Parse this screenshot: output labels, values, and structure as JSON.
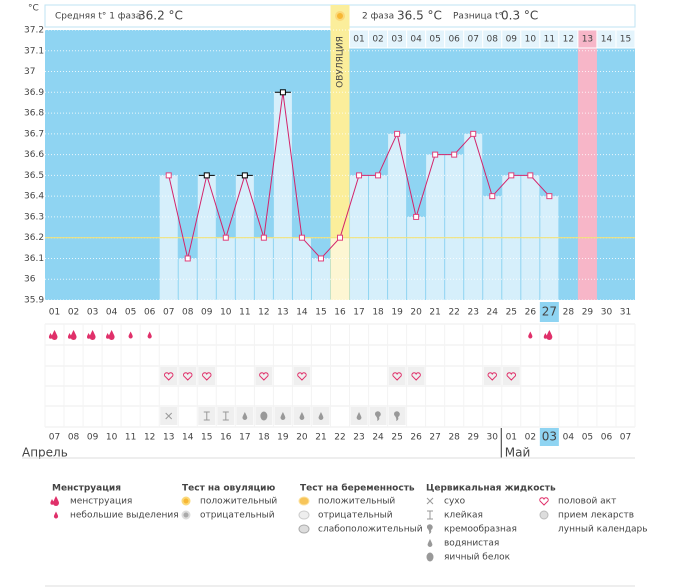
{
  "header": {
    "unit": "°C",
    "phase1_label": "Средняя t° 1 фаза",
    "phase1_value": "36.2 °C",
    "phase2_label": "2 фаза",
    "phase2_value": "36.5 °C",
    "diff_label": "Разница t°",
    "diff_value": "0.3 °C"
  },
  "chart_data": {
    "type": "line",
    "x": [
      "01",
      "02",
      "03",
      "04",
      "05",
      "06",
      "07",
      "08",
      "09",
      "10",
      "11",
      "12",
      "13",
      "14",
      "15",
      "16",
      "17",
      "18",
      "19",
      "20",
      "21",
      "22",
      "23",
      "24",
      "25",
      "26",
      "27",
      "28",
      "29",
      "30",
      "31"
    ],
    "series": [
      {
        "color": "#d3246b",
        "values": [
          null,
          null,
          null,
          null,
          null,
          null,
          36.5,
          36.1,
          36.5,
          36.2,
          36.5,
          36.2,
          36.9,
          36.2,
          36.1,
          36.2,
          36.5,
          36.5,
          36.7,
          36.3,
          36.6,
          36.6,
          36.7,
          36.4,
          36.5,
          36.5,
          36.4,
          null,
          null,
          null,
          null
        ],
        "marker_colors": [
          null,
          null,
          null,
          null,
          null,
          null,
          "#e0407a",
          "#e0407a",
          "#000000",
          "#e0407a",
          "#000000",
          "#e0407a",
          "#000000",
          "#e0407a",
          "#e0407a",
          "#e0407a",
          "#e0407a",
          "#e0407a",
          "#e0407a",
          "#e0407a",
          "#e0407a",
          "#e0407a",
          "#e0407a",
          "#e0407a",
          "#e0407a",
          "#e0407a",
          "#e0407a",
          null,
          null,
          null,
          null
        ]
      }
    ],
    "ylim": [
      35.9,
      37.2
    ],
    "yticks": [
      35.9,
      36,
      36.1,
      36.2,
      36.3,
      36.4,
      36.5,
      36.6,
      36.7,
      36.8,
      36.9,
      37,
      37.1,
      37.2
    ],
    "coverline": 36.2,
    "ovulation": {
      "label": "ОВУЛЯЦИЯ",
      "day": "16"
    },
    "luteal_days": [
      null,
      null,
      null,
      null,
      null,
      null,
      null,
      null,
      null,
      null,
      null,
      null,
      null,
      null,
      null,
      null,
      "01",
      "02",
      "03",
      "04",
      "05",
      "06",
      "07",
      "08",
      "09",
      "10",
      "11",
      "12",
      "13",
      "14",
      "15"
    ],
    "marked_luteal_day": "13",
    "today": "27",
    "menstruation": [
      "heavy",
      "heavy",
      "heavy",
      "heavy",
      "light",
      "light",
      null,
      null,
      null,
      null,
      null,
      null,
      null,
      null,
      null,
      null,
      null,
      null,
      null,
      null,
      null,
      null,
      null,
      null,
      null,
      "light",
      "heavy",
      null,
      null,
      null,
      null
    ],
    "intercourse": [
      "07",
      "08",
      "09",
      "12",
      "14",
      "19",
      "20",
      "24",
      "25"
    ],
    "cervical": [
      null,
      null,
      null,
      null,
      null,
      null,
      "dry",
      null,
      "sticky",
      "sticky",
      "watery",
      "eggwhite",
      "watery",
      "watery",
      "watery",
      null,
      "watery",
      "creamy",
      "creamy",
      null,
      null,
      null,
      null,
      null,
      null,
      null,
      null,
      null,
      null,
      null,
      null
    ],
    "dates": [
      "07",
      "08",
      "09",
      "10",
      "11",
      "12",
      "13",
      "14",
      "15",
      "16",
      "17",
      "18",
      "19",
      "20",
      "21",
      "22",
      "23",
      "24",
      "25",
      "26",
      "27",
      "28",
      "29",
      "30",
      "01",
      "02",
      "03",
      "04",
      "05",
      "06",
      "07"
    ],
    "date_colors": [
      "#e0306a",
      "#444",
      "#444",
      "#444",
      "#444",
      "#444",
      "#e0306a",
      "#e0306a",
      "#444",
      "#444",
      "#444",
      "#444",
      "#444",
      "#e0306a",
      "#e0306a",
      "#444",
      "#444",
      "#444",
      "#444",
      "#444",
      "#e0306a",
      "#e0306a",
      "#444",
      "#444",
      "#444",
      "#444",
      "#444",
      "#e0306a",
      "#e0306a",
      "#444",
      "#444"
    ],
    "months": [
      "Апрель",
      "Май"
    ]
  },
  "legend": [
    {
      "title": "Менструация",
      "items": [
        {
          "label": "менструация",
          "icon": "heavy"
        },
        {
          "label": "небольшие выделения",
          "icon": "light"
        }
      ]
    },
    {
      "title": "Тест на овуляцию",
      "items": [
        {
          "label": "положительный",
          "icon": "ovpos"
        },
        {
          "label": "отрицательный",
          "icon": "ovneg"
        }
      ]
    },
    {
      "title": "Тест на беременность",
      "items": [
        {
          "label": "положительный",
          "icon": "prpos"
        },
        {
          "label": "отрицательный",
          "icon": "prneg"
        },
        {
          "label": "слабоположительный",
          "icon": "prweak"
        }
      ]
    },
    {
      "title": "Цервикальная жидкость",
      "items": [
        {
          "label": "сухо",
          "icon": "dry"
        },
        {
          "label": "клейкая",
          "icon": "sticky"
        },
        {
          "label": "кремообразная",
          "icon": "creamy"
        },
        {
          "label": "водянистая",
          "icon": "watery"
        },
        {
          "label": "яичный белок",
          "icon": "eggwhite"
        }
      ]
    },
    {
      "items": [
        {
          "label": "половой акт",
          "icon": "heart"
        },
        {
          "label": "прием лекарств",
          "icon": "pill"
        },
        {
          "label": "лунный календарь",
          "icon": "moon"
        }
      ]
    }
  ]
}
